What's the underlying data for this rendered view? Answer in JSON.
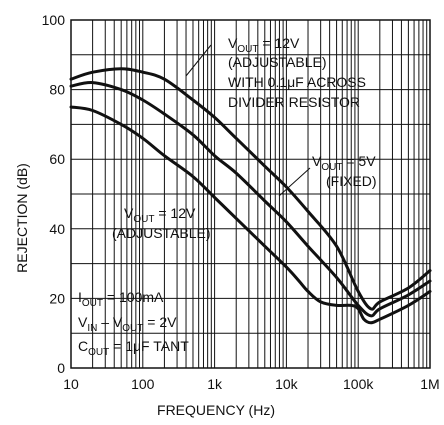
{
  "chart_data": {
    "type": "line",
    "xlabel": "FREQUENCY (Hz)",
    "ylabel": "REJECTION (dB)",
    "xscale": "log",
    "xlim": [
      10,
      1000000
    ],
    "ylim": [
      0,
      100
    ],
    "grid": true,
    "x_ticks": [
      10,
      100,
      1000,
      10000,
      100000,
      1000000
    ],
    "x_tick_labels": [
      "10",
      "100",
      "1k",
      "10k",
      "100k",
      "1M"
    ],
    "y_ticks": [
      0,
      20,
      40,
      60,
      80,
      100
    ],
    "y_tick_labels": [
      "0",
      "20",
      "40",
      "60",
      "80",
      "100"
    ],
    "series": [
      {
        "key": "adj_bypass",
        "x": [
          10,
          20,
          50,
          100,
          200,
          500,
          1000,
          2000,
          5000,
          10000,
          20000,
          50000,
          100000,
          150000,
          200000,
          500000,
          1000000
        ],
        "y": [
          83,
          85,
          86,
          85,
          83,
          77,
          72,
          66,
          58,
          52,
          45,
          35,
          22,
          17,
          19,
          23,
          28
        ]
      },
      {
        "key": "fixed_5v",
        "x": [
          10,
          20,
          50,
          100,
          200,
          500,
          1000,
          2000,
          5000,
          10000,
          20000,
          50000,
          100000,
          150000,
          200000,
          500000,
          1000000
        ],
        "y": [
          81,
          82,
          80,
          77,
          73,
          67,
          61,
          56,
          48,
          42,
          35,
          26,
          18,
          15,
          17,
          21,
          25
        ]
      },
      {
        "key": "adj_12v",
        "x": [
          10,
          20,
          50,
          100,
          200,
          500,
          1000,
          2000,
          5000,
          10000,
          15000,
          20000,
          30000,
          50000,
          80000,
          100000,
          120000,
          150000,
          200000,
          500000,
          1000000
        ],
        "y": [
          75,
          74,
          70,
          66,
          61,
          55,
          49,
          43,
          35,
          29,
          25,
          22,
          19,
          18,
          18,
          17,
          14,
          13,
          14,
          18,
          22
        ]
      }
    ]
  },
  "annotations": {
    "adj_bypass": {
      "line1_main": "V",
      "line1_sub": "OUT",
      "line1_rest": " = 12V",
      "line2": "(ADJUSTABLE)",
      "line3": "WITH 0.1μF ACROSS",
      "line4": "DIVIDER RESISTOR"
    },
    "fixed_5v": {
      "line1_main": "V",
      "line1_sub": "OUT",
      "line1_rest": " = 5V",
      "line2": "(FIXED)"
    },
    "adj_12v": {
      "line1_main": "V",
      "line1_sub": "OUT",
      "line1_rest": " = 12V",
      "line2": "(ADJUSTABLE)"
    },
    "conditions": {
      "c1_main": "I",
      "c1_sub": "OUT",
      "c1_rest": " = 100mA",
      "c2_a": "V",
      "c2_a_sub": "IN",
      "c2_b": " – V",
      "c2_b_sub": "OUT",
      "c2_rest": " = 2V",
      "c3_main": "C",
      "c3_sub": "OUT",
      "c3_rest": " = 1μF TANT"
    }
  }
}
